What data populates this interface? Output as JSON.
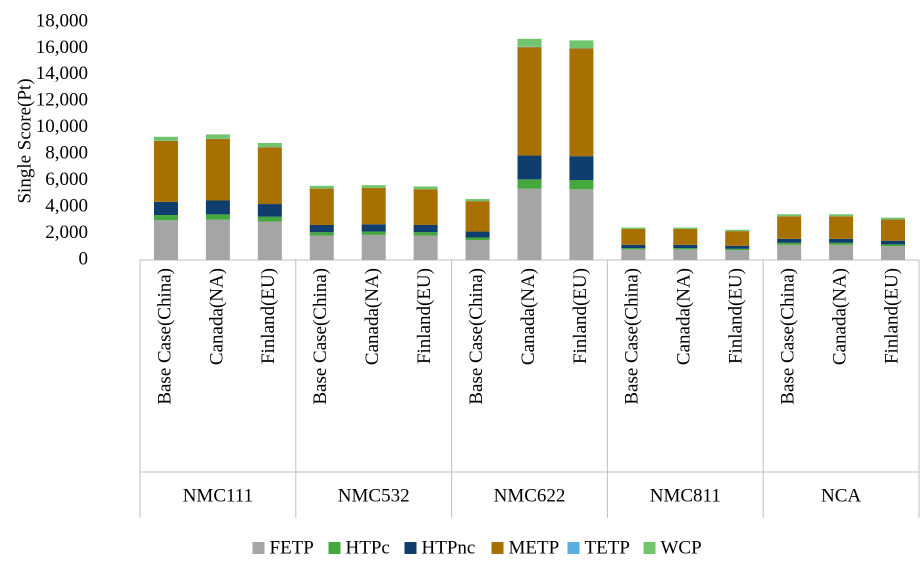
{
  "chart_data": {
    "type": "stacked_bar",
    "y_label": "Single Score(Pt)",
    "groups": [
      {
        "name": "NMC111",
        "categories": [
          "Base Case(China)",
          "Canada(NA)",
          "Finland(EU)"
        ]
      },
      {
        "name": "NMC532",
        "categories": [
          "Base Case(China)",
          "Canada(NA)",
          "Finland(EU)"
        ]
      },
      {
        "name": "NMC622",
        "categories": [
          "Base Case(China)",
          "Canada(NA)",
          "Finland(EU)"
        ]
      },
      {
        "name": "NMC811",
        "categories": [
          "Base Case(China)",
          "Canada(NA)",
          "Finland(EU)"
        ]
      },
      {
        "name": "NCA",
        "categories": [
          "Base Case(China)",
          "Canada(NA)",
          "Finland(EU)"
        ]
      }
    ],
    "series": [
      {
        "name": "FETP",
        "color": "#a5a5a5",
        "values": [
          3000,
          3050,
          2900,
          1850,
          1900,
          1850,
          1500,
          5400,
          5350,
          800,
          800,
          750,
          1150,
          1150,
          1050
        ]
      },
      {
        "name": "HTPc",
        "color": "#44a83c",
        "values": [
          400,
          400,
          380,
          250,
          250,
          250,
          200,
          700,
          700,
          100,
          100,
          100,
          150,
          150,
          130
        ]
      },
      {
        "name": "HTPnc",
        "color": "#0e3d6e",
        "values": [
          1000,
          1050,
          950,
          550,
          550,
          550,
          450,
          1800,
          1800,
          250,
          250,
          230,
          300,
          300,
          280
        ]
      },
      {
        "name": "METP",
        "color": "#a87000",
        "values": [
          4600,
          4650,
          4300,
          2750,
          2750,
          2700,
          2300,
          8200,
          8150,
          1200,
          1200,
          1100,
          1700,
          1700,
          1600
        ]
      },
      {
        "name": "TETP",
        "color": "#5aade0",
        "values": [
          20,
          20,
          20,
          10,
          10,
          10,
          10,
          30,
          30,
          5,
          5,
          5,
          10,
          10,
          10
        ]
      },
      {
        "name": "WCP",
        "color": "#70c46c",
        "values": [
          300,
          330,
          300,
          200,
          200,
          200,
          150,
          600,
          580,
          100,
          100,
          100,
          150,
          150,
          130
        ]
      }
    ],
    "ylim": [
      0,
      18000
    ],
    "yticks": [
      0,
      {
        "value": 2000,
        "label": "2,000"
      },
      {
        "value": 4000,
        "label": "4,000"
      },
      {
        "value": 6000,
        "label": "6,000"
      },
      {
        "value": 8000,
        "label": "8,000"
      },
      {
        "value": 10000,
        "label": "10,000"
      },
      {
        "value": 12000,
        "label": "12,000"
      },
      {
        "value": 14000,
        "label": "14,000"
      },
      {
        "value": 16000,
        "label": "16,000"
      },
      {
        "value": 18000,
        "label": "18,000"
      }
    ],
    "grid": false,
    "legend": "bottom"
  }
}
